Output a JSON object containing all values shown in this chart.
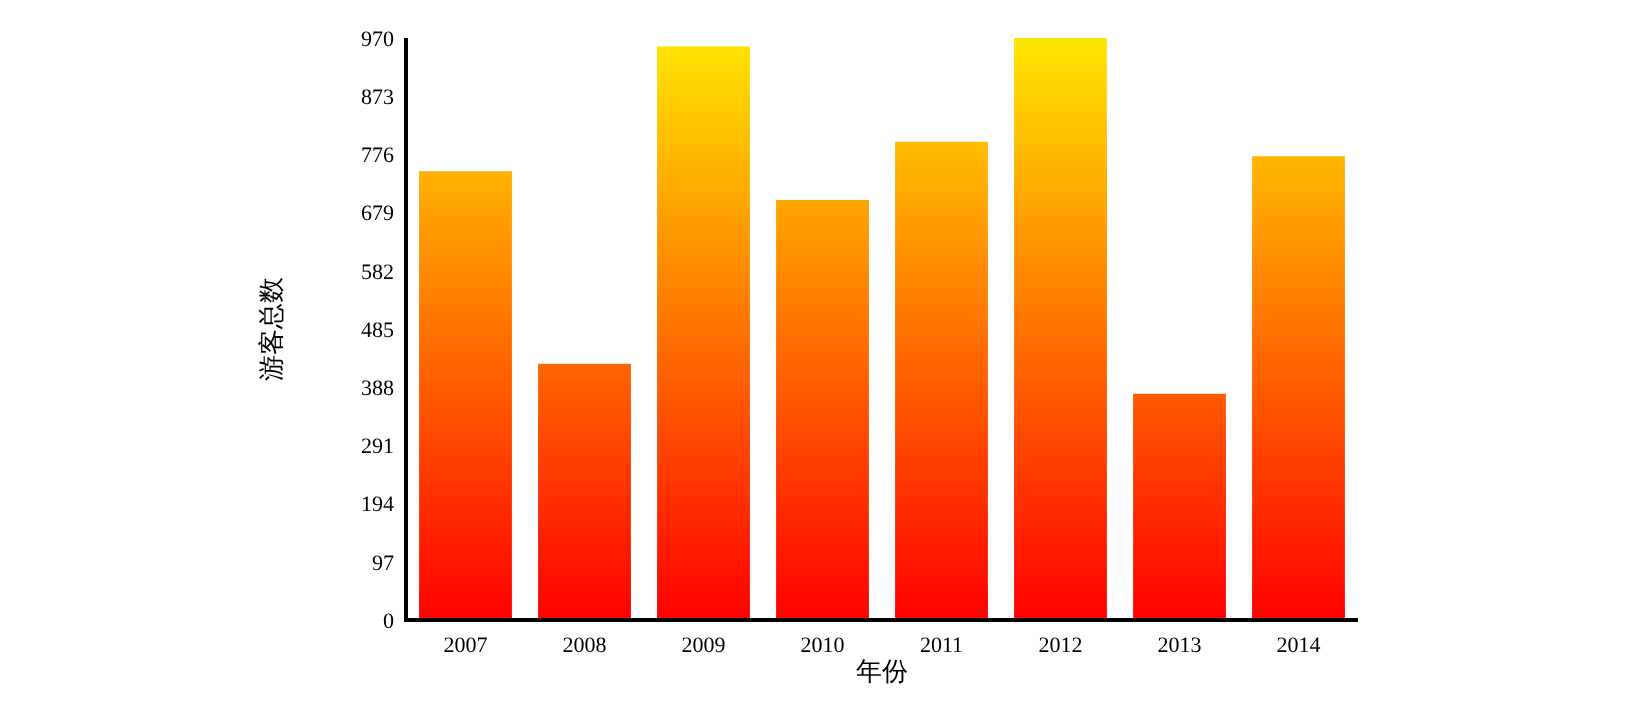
{
  "chart_data": {
    "type": "bar",
    "xlabel": "年份",
    "ylabel": "游客总数",
    "categories": [
      "2007",
      "2008",
      "2009",
      "2010",
      "2011",
      "2012",
      "2013",
      "2014"
    ],
    "values": [
      748,
      427,
      956,
      700,
      797,
      970,
      377,
      773
    ],
    "color": "#ff0000",
    "ylim": [
      0,
      970
    ],
    "yticks": [
      0,
      97,
      194,
      291,
      388,
      485,
      582,
      679,
      776,
      873,
      970
    ],
    "grid": false
  }
}
